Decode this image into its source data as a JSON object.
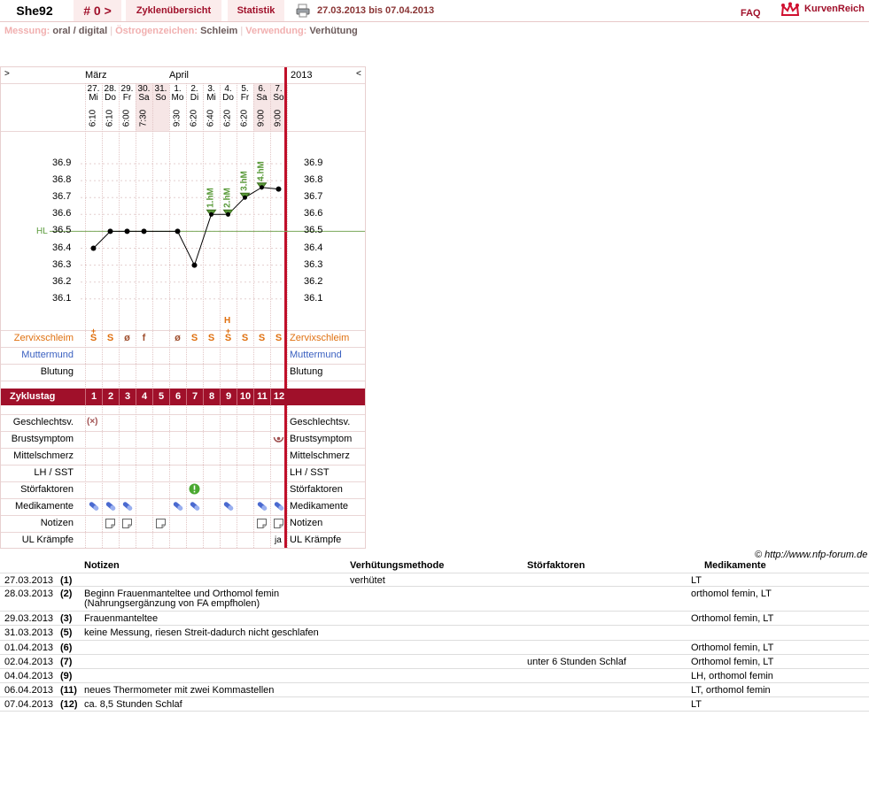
{
  "topbar": {
    "user": "She92",
    "cycle_nr": "# 0 >",
    "tab_overview": "Zyklenübersicht",
    "tab_stats": "Statistik",
    "date_range": "27.03.2013 bis 07.04.2013",
    "faq": "FAQ",
    "logo": "KurvenReich",
    "print_icon": "printer-icon",
    "logo_icon": "crown-icon"
  },
  "settings": {
    "messung_label": "Messung:",
    "messung_value": "oral / digital",
    "oestrogen_label": "Östrogenzeichen:",
    "oestrogen_value": "Schleim",
    "verwendung_label": "Verwendung:",
    "verwendung_value": "Verhütung"
  },
  "chart": {
    "nav_left": ">",
    "nav_right": "<",
    "year": "2013",
    "month1": "März",
    "month2": "April",
    "hl_label": "HL",
    "accent": "#a0102a"
  },
  "chart_data": {
    "type": "line",
    "ylabel": "",
    "y_ticks": [
      "36.9",
      "36.8",
      "36.7",
      "36.6",
      "36.5",
      "36.4",
      "36.3",
      "36.2",
      "36.1"
    ],
    "ylim": [
      36.05,
      36.95
    ],
    "days": [
      {
        "date": "27.",
        "wd": "Mi",
        "time": "6:10",
        "temp": 36.4,
        "zs": "S",
        "zs_plus": true,
        "cd": "1"
      },
      {
        "date": "28.",
        "wd": "Do",
        "time": "6:10",
        "temp": 36.5,
        "zs": "S",
        "zs_plus": false,
        "cd": "2"
      },
      {
        "date": "29.",
        "wd": "Fr",
        "time": "6:00",
        "temp": 36.5,
        "zs": "ø",
        "zs_plus": false,
        "cd": "3"
      },
      {
        "date": "30.",
        "wd": "Sa",
        "time": "7:30",
        "temp": 36.5,
        "zs": "f",
        "zs_plus": false,
        "cd": "4"
      },
      {
        "date": "31.",
        "wd": "So",
        "time": "",
        "temp": null,
        "zs": "",
        "zs_plus": false,
        "cd": "5"
      },
      {
        "date": "1.",
        "wd": "Mo",
        "time": "9:30",
        "temp": 36.5,
        "zs": "ø",
        "zs_plus": false,
        "cd": "6"
      },
      {
        "date": "2.",
        "wd": "Di",
        "time": "6:20",
        "temp": 36.3,
        "zs": "S",
        "zs_plus": false,
        "cd": "7"
      },
      {
        "date": "3.",
        "wd": "Mi",
        "time": "6:40",
        "temp": 36.6,
        "zs": "S",
        "zs_plus": false,
        "cd": "8"
      },
      {
        "date": "4.",
        "wd": "Do",
        "time": "6:20",
        "temp": 36.6,
        "zs": "S",
        "zs_plus": true,
        "cd": "9"
      },
      {
        "date": "5.",
        "wd": "Fr",
        "time": "6:20",
        "temp": 36.7,
        "zs": "S",
        "zs_plus": false,
        "cd": "10"
      },
      {
        "date": "6.",
        "wd": "Sa",
        "time": "9:00",
        "temp": 36.76,
        "zs": "S",
        "zs_plus": false,
        "cd": "11"
      },
      {
        "date": "7.",
        "wd": "So",
        "time": "9:00",
        "temp": 36.75,
        "zs": "S",
        "zs_plus": false,
        "cd": "12"
      }
    ],
    "hl_value": 36.5,
    "high_markers": [
      {
        "day_index": 7,
        "label": "1.hM"
      },
      {
        "day_index": 8,
        "label": "2.hM"
      },
      {
        "day_index": 9,
        "label": "3.hM"
      },
      {
        "day_index": 10,
        "label": "4.hM"
      }
    ],
    "peak_label": "H",
    "peak_day_index": 8
  },
  "rows": {
    "zervix": "Zervixschleim",
    "muttermund": "Muttermund",
    "blutung": "Blutung",
    "zyklustag": "Zyklustag",
    "geschlechtsv": "Geschlechtsv.",
    "brustsymptom": "Brustsymptom",
    "mittelschmerz": "Mittelschmerz",
    "lhsst": "LH / SST",
    "stoerfaktoren": "Störfaktoren",
    "medikamente": "Medikamente",
    "notizen": "Notizen",
    "ul": "UL Krämpfe",
    "ul_value": "ja"
  },
  "notes": {
    "copyright": "© http://www.nfp-forum.de",
    "headers": {
      "notizen": "Notizen",
      "verhuetung": "Verhütungsmethode",
      "stoer": "Störfaktoren",
      "medi": "Medikamente"
    },
    "rows": [
      {
        "date": "27.03.2013",
        "cd": "(1)",
        "note": "",
        "note2": "",
        "verh": "verhütet",
        "stoer": "",
        "medi": "LT"
      },
      {
        "date": "28.03.2013",
        "cd": "(2)",
        "note": "Beginn Frauenmanteltee und Orthomol femin",
        "note2": "(Nahrungsergänzung von FA empfholen)",
        "verh": "",
        "stoer": "",
        "medi": "orthomol femin, LT"
      },
      {
        "date": "29.03.2013",
        "cd": "(3)",
        "note": "Frauenmanteltee",
        "note2": "",
        "verh": "",
        "stoer": "",
        "medi": "Orthomol femin, LT"
      },
      {
        "date": "31.03.2013",
        "cd": "(5)",
        "note": "keine Messung, riesen Streit-dadurch nicht geschlafen",
        "note2": "",
        "verh": "",
        "stoer": "",
        "medi": ""
      },
      {
        "date": "01.04.2013",
        "cd": "(6)",
        "note": "",
        "note2": "",
        "verh": "",
        "stoer": "",
        "medi": "Orthomol femin, LT"
      },
      {
        "date": "02.04.2013",
        "cd": "(7)",
        "note": "",
        "note2": "",
        "verh": "",
        "stoer": "unter 6 Stunden Schlaf",
        "medi": "Orthomol femin, LT"
      },
      {
        "date": "04.04.2013",
        "cd": "(9)",
        "note": "",
        "note2": "",
        "verh": "",
        "stoer": "",
        "medi": "LH, orthomol femin"
      },
      {
        "date": "06.04.2013",
        "cd": "(11)",
        "note": "neues Thermometer mit zwei Kommastellen",
        "note2": "",
        "verh": "",
        "stoer": "",
        "medi": "LT, orthomol femin"
      },
      {
        "date": "07.04.2013",
        "cd": "(12)",
        "note": "ca. 8,5 Stunden Schlaf",
        "note2": "",
        "verh": "",
        "stoer": "",
        "medi": "LT"
      }
    ]
  }
}
